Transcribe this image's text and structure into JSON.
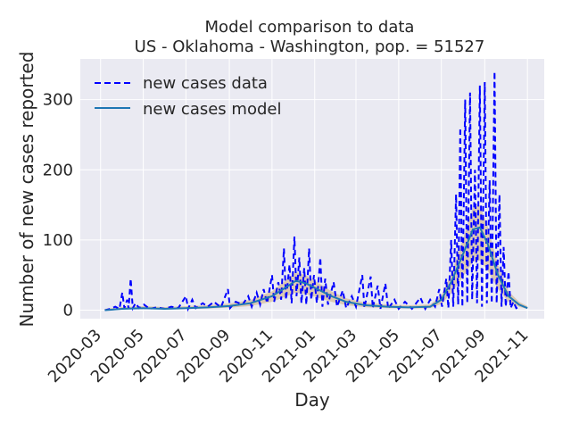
{
  "chart_data": {
    "type": "line",
    "title_line1": "Model comparison to data",
    "title_line2": "US - Oklahoma - Washington, pop. = 51527",
    "xlabel": "Day",
    "ylabel": "Number of new cases reported",
    "x_range": [
      "2020-02-01",
      "2021-11-25"
    ],
    "ylim": [
      -12,
      358
    ],
    "grid": true,
    "legend_placement": "top-left",
    "x_tick_labels": [
      "2020-03",
      "2020-05",
      "2020-07",
      "2020-09",
      "2020-11",
      "2021-01",
      "2021-03",
      "2021-05",
      "2021-07",
      "2021-09",
      "2021-11"
    ],
    "x_ticks": [
      "2020-03-01",
      "2020-05-01",
      "2020-07-01",
      "2020-09-01",
      "2020-11-01",
      "2021-01-01",
      "2021-03-01",
      "2021-05-01",
      "2021-07-01",
      "2021-09-01",
      "2021-11-01"
    ],
    "y_ticks": [
      0,
      100,
      200,
      300
    ],
    "y_tick_labels": [
      "0",
      "100",
      "200",
      "300"
    ],
    "colors": {
      "data": "#0000ff",
      "model": "#1f77b4",
      "plot_bg": "#eaeaf2",
      "grid": "#ffffff",
      "band_fill": "#c8a064"
    },
    "series": [
      {
        "name": "new cases data",
        "style": "dashed",
        "points": [
          [
            "2020-03-07",
            0
          ],
          [
            "2020-03-15",
            2
          ],
          [
            "2020-03-22",
            5
          ],
          [
            "2020-03-28",
            2
          ],
          [
            "2020-04-01",
            25
          ],
          [
            "2020-04-04",
            3
          ],
          [
            "2020-04-08",
            15
          ],
          [
            "2020-04-10",
            2
          ],
          [
            "2020-04-13",
            45
          ],
          [
            "2020-04-16",
            3
          ],
          [
            "2020-04-20",
            10
          ],
          [
            "2020-04-25",
            3
          ],
          [
            "2020-05-02",
            8
          ],
          [
            "2020-05-10",
            2
          ],
          [
            "2020-05-20",
            4
          ],
          [
            "2020-06-01",
            2
          ],
          [
            "2020-06-10",
            5
          ],
          [
            "2020-06-20",
            3
          ],
          [
            "2020-07-01",
            20
          ],
          [
            "2020-07-04",
            2
          ],
          [
            "2020-07-10",
            15
          ],
          [
            "2020-07-15",
            3
          ],
          [
            "2020-07-25",
            10
          ],
          [
            "2020-08-01",
            5
          ],
          [
            "2020-08-10",
            12
          ],
          [
            "2020-08-20",
            4
          ],
          [
            "2020-08-30",
            30
          ],
          [
            "2020-09-02",
            3
          ],
          [
            "2020-09-10",
            12
          ],
          [
            "2020-09-20",
            8
          ],
          [
            "2020-09-28",
            20
          ],
          [
            "2020-10-03",
            5
          ],
          [
            "2020-10-10",
            25
          ],
          [
            "2020-10-15",
            8
          ],
          [
            "2020-10-20",
            30
          ],
          [
            "2020-10-25",
            10
          ],
          [
            "2020-11-01",
            50
          ],
          [
            "2020-11-04",
            12
          ],
          [
            "2020-11-10",
            40
          ],
          [
            "2020-11-14",
            15
          ],
          [
            "2020-11-18",
            88
          ],
          [
            "2020-11-21",
            15
          ],
          [
            "2020-11-26",
            65
          ],
          [
            "2020-11-29",
            10
          ],
          [
            "2020-12-03",
            105
          ],
          [
            "2020-12-06",
            20
          ],
          [
            "2020-12-10",
            75
          ],
          [
            "2020-12-13",
            10
          ],
          [
            "2020-12-17",
            60
          ],
          [
            "2020-12-20",
            8
          ],
          [
            "2020-12-24",
            88
          ],
          [
            "2020-12-27",
            15
          ],
          [
            "2020-12-31",
            50
          ],
          [
            "2021-01-04",
            10
          ],
          [
            "2021-01-09",
            75
          ],
          [
            "2021-01-12",
            5
          ],
          [
            "2021-01-16",
            45
          ],
          [
            "2021-01-20",
            8
          ],
          [
            "2021-01-28",
            40
          ],
          [
            "2021-02-02",
            5
          ],
          [
            "2021-02-10",
            28
          ],
          [
            "2021-02-15",
            3
          ],
          [
            "2021-02-23",
            20
          ],
          [
            "2021-03-01",
            5
          ],
          [
            "2021-03-10",
            50
          ],
          [
            "2021-03-13",
            3
          ],
          [
            "2021-03-22",
            48
          ],
          [
            "2021-03-25",
            3
          ],
          [
            "2021-04-01",
            35
          ],
          [
            "2021-04-05",
            2
          ],
          [
            "2021-04-12",
            38
          ],
          [
            "2021-04-16",
            2
          ],
          [
            "2021-04-25",
            15
          ],
          [
            "2021-05-01",
            2
          ],
          [
            "2021-05-10",
            12
          ],
          [
            "2021-05-20",
            2
          ],
          [
            "2021-06-01",
            18
          ],
          [
            "2021-06-08",
            2
          ],
          [
            "2021-06-15",
            15
          ],
          [
            "2021-06-22",
            5
          ],
          [
            "2021-06-28",
            30
          ],
          [
            "2021-07-02",
            5
          ],
          [
            "2021-07-08",
            45
          ],
          [
            "2021-07-11",
            3
          ],
          [
            "2021-07-15",
            100
          ],
          [
            "2021-07-18",
            5
          ],
          [
            "2021-07-22",
            165
          ],
          [
            "2021-07-25",
            8
          ],
          [
            "2021-07-28",
            260
          ],
          [
            "2021-07-31",
            5
          ],
          [
            "2021-08-04",
            300
          ],
          [
            "2021-08-07",
            10
          ],
          [
            "2021-08-11",
            310
          ],
          [
            "2021-08-14",
            15
          ],
          [
            "2021-08-18",
            200
          ],
          [
            "2021-08-21",
            10
          ],
          [
            "2021-08-25",
            320
          ],
          [
            "2021-08-28",
            5
          ],
          [
            "2021-09-01",
            325
          ],
          [
            "2021-09-04",
            10
          ],
          [
            "2021-09-08",
            185
          ],
          [
            "2021-09-11",
            10
          ],
          [
            "2021-09-15",
            340
          ],
          [
            "2021-09-18",
            10
          ],
          [
            "2021-09-22",
            165
          ],
          [
            "2021-09-25",
            5
          ],
          [
            "2021-09-28",
            90
          ],
          [
            "2021-10-01",
            5
          ],
          [
            "2021-10-05",
            55
          ],
          [
            "2021-10-08",
            3
          ],
          [
            "2021-10-12",
            12
          ],
          [
            "2021-10-16",
            3
          ],
          [
            "2021-10-20",
            5
          ]
        ]
      },
      {
        "name": "new cases model",
        "style": "solid",
        "points": [
          [
            "2020-03-07",
            0
          ],
          [
            "2020-04-01",
            2
          ],
          [
            "2020-05-01",
            3
          ],
          [
            "2020-06-01",
            2
          ],
          [
            "2020-07-01",
            3
          ],
          [
            "2020-08-01",
            4
          ],
          [
            "2020-09-01",
            6
          ],
          [
            "2020-10-01",
            10
          ],
          [
            "2020-11-01",
            20
          ],
          [
            "2020-11-20",
            32
          ],
          [
            "2020-12-05",
            42
          ],
          [
            "2020-12-20",
            38
          ],
          [
            "2021-01-05",
            30
          ],
          [
            "2021-01-25",
            20
          ],
          [
            "2021-02-15",
            12
          ],
          [
            "2021-03-15",
            7
          ],
          [
            "2021-04-15",
            5
          ],
          [
            "2021-05-15",
            4
          ],
          [
            "2021-06-15",
            5
          ],
          [
            "2021-07-01",
            15
          ],
          [
            "2021-07-15",
            40
          ],
          [
            "2021-08-01",
            80
          ],
          [
            "2021-08-15",
            115
          ],
          [
            "2021-08-25",
            118
          ],
          [
            "2021-09-05",
            95
          ],
          [
            "2021-09-20",
            50
          ],
          [
            "2021-10-05",
            20
          ],
          [
            "2021-10-20",
            8
          ],
          [
            "2021-11-01",
            3
          ]
        ]
      }
    ]
  }
}
